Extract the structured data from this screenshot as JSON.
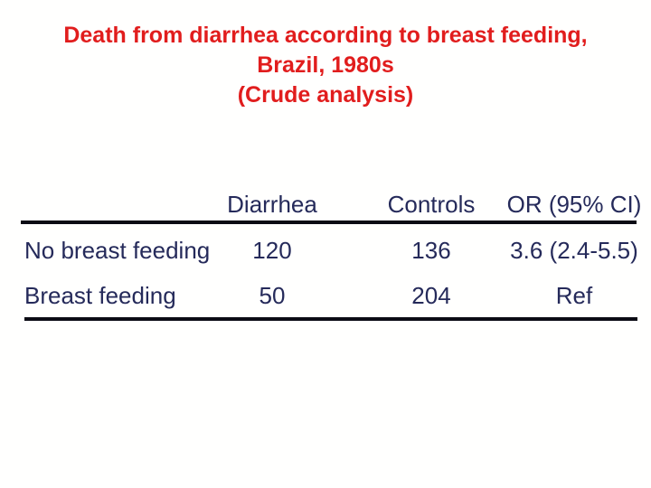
{
  "slide": {
    "title": {
      "lines": [
        "Death from diarrhea according to breast feeding,",
        "Brazil, 1980s",
        "(Crude analysis)"
      ],
      "color": "#e11d1d"
    },
    "table": {
      "column_headers": [
        "",
        "Diarrhea",
        "Controls",
        "OR (95% CI)"
      ],
      "rows": [
        {
          "label": "No breast feeding",
          "diarrhea": "120",
          "controls": "136",
          "or_ci": "3.6 (2.4-5.5)"
        },
        {
          "label": "Breast feeding",
          "diarrhea": "50",
          "controls": "204",
          "or_ci": "Ref"
        }
      ],
      "text_color": "#252a5a",
      "rule_color": "#0b0b14"
    }
  },
  "chart_data": {
    "type": "table",
    "title": "Death from diarrhea according to breast feeding, Brazil, 1980s (Crude analysis)",
    "columns": [
      "",
      "Diarrhea",
      "Controls",
      "OR (95% CI)"
    ],
    "rows": [
      [
        "No breast feeding",
        "120",
        "136",
        "3.6 (2.4-5.5)"
      ],
      [
        "Breast feeding",
        "50",
        "204",
        "Ref"
      ]
    ]
  }
}
